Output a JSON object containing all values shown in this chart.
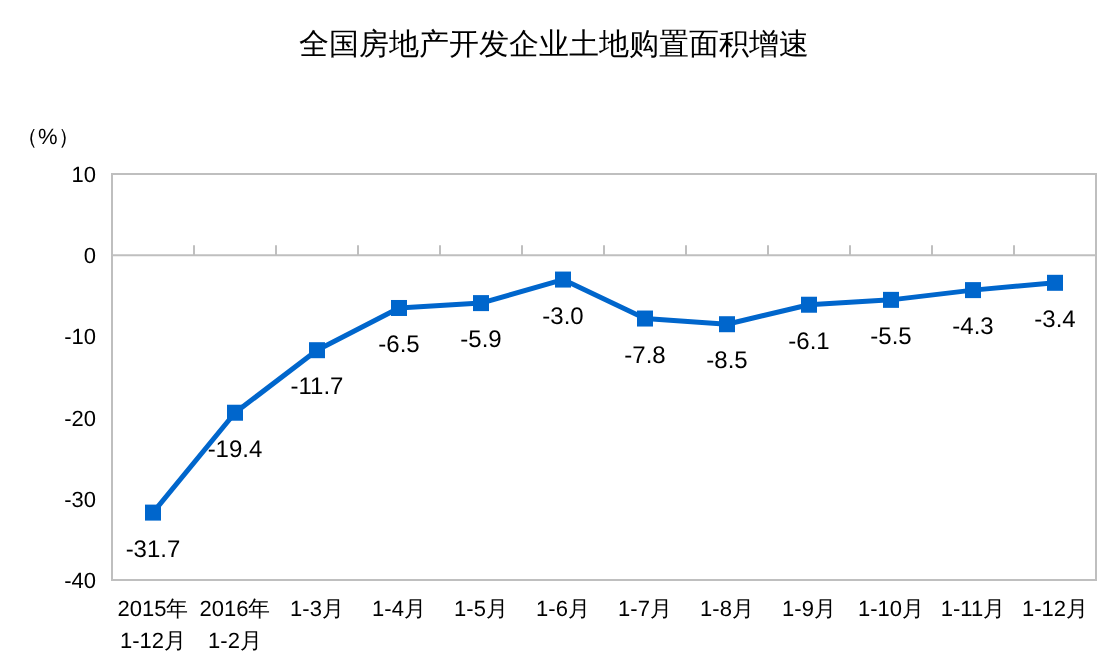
{
  "chart_data": {
    "type": "line",
    "title": "全国房地产开发企业土地购置面积增速",
    "ylabel": "（%）",
    "categories": [
      "2015年\n1-12月",
      "2016年\n1-2月",
      "1-3月",
      "1-4月",
      "1-5月",
      "1-6月",
      "1-7月",
      "1-8月",
      "1-9月",
      "1-10月",
      "1-11月",
      "1-12月"
    ],
    "series": [
      {
        "color": "#0066cc",
        "values": [
          -31.7,
          -19.4,
          -11.7,
          -6.5,
          -5.9,
          -3.0,
          -7.8,
          -8.5,
          -6.1,
          -5.5,
          -4.3,
          -3.4
        ],
        "value_labels": [
          "-31.7",
          "-19.4",
          "-11.7",
          "-6.5",
          "-5.9",
          "-3.0",
          "-7.8",
          "-8.5",
          "-6.1",
          "-5.5",
          "-4.3",
          "-3.4"
        ]
      }
    ],
    "ylim": [
      -40,
      10
    ],
    "yticks": [
      -40,
      -30,
      -20,
      -10,
      0,
      10
    ],
    "marker": "square"
  }
}
